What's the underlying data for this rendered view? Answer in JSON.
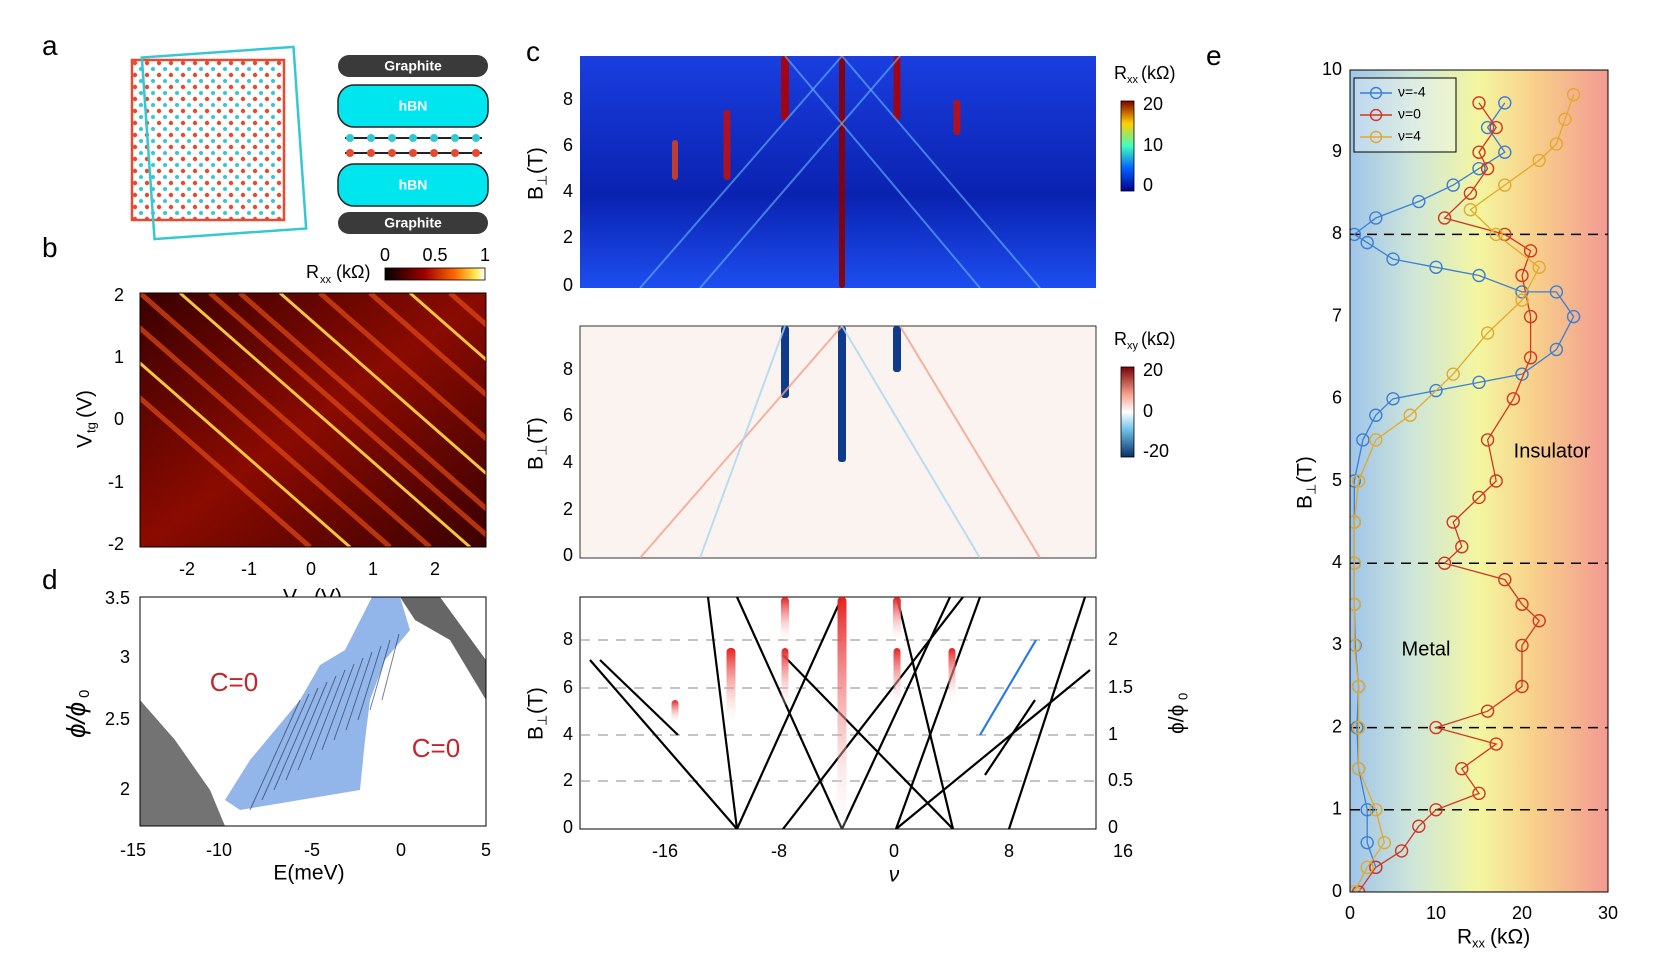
{
  "panel_labels": [
    "a",
    "b",
    "c",
    "d",
    "e"
  ],
  "panel_a": {
    "stack": [
      "Graphite",
      "hBN",
      "hBN",
      "Graphite"
    ]
  },
  "panel_b": {
    "xlabel": "V",
    "xlabel_sub": "bg",
    "xlabel_unit": "(V)",
    "ylabel": "V",
    "ylabel_sub": "tg",
    "ylabel_unit": "(V)",
    "xticks": [
      "-2",
      "-1",
      "0",
      "1",
      "2"
    ],
    "yticks": [
      "2",
      "1",
      "0",
      "-1",
      "-2"
    ],
    "colorbar_label": "R",
    "colorbar_sub": "xx",
    "colorbar_unit": "(kΩ)",
    "colorbar_ticks": [
      "0",
      "0.5",
      "1"
    ]
  },
  "panel_c": {
    "top": {
      "ylabel": "B",
      "ylabel_sub": "⊥",
      "ylabel_unit": "(T)",
      "yticks": [
        "8",
        "6",
        "4",
        "2",
        "0"
      ],
      "colorbar_label": "R",
      "colorbar_sub": "xx",
      "colorbar_unit": "(kΩ)",
      "colorbar_ticks": [
        "20",
        "10",
        "0"
      ]
    },
    "mid": {
      "ylabel": "B",
      "ylabel_sub": "⊥",
      "ylabel_unit": "(T)",
      "yticks": [
        "8",
        "6",
        "4",
        "2",
        "0"
      ],
      "colorbar_label": "R",
      "colorbar_sub": "xy",
      "colorbar_unit": "(kΩ)",
      "colorbar_ticks": [
        "20",
        "0",
        "-20"
      ]
    },
    "bottom": {
      "ylabel": "B",
      "ylabel_sub": "⊥",
      "ylabel_unit": "(T)",
      "yticks": [
        "8",
        "6",
        "4",
        "2",
        "0"
      ],
      "right_ylabel": "ϕ/ϕ",
      "right_ylabel_sub": "0",
      "right_yticks": [
        "2",
        "1.5",
        "1",
        "0.5",
        "0"
      ],
      "xticks": [
        "-16",
        "-8",
        "0",
        "8",
        "16"
      ],
      "xlabel": "ν"
    }
  },
  "panel_d": {
    "xlabel": "E(meV)",
    "ylabel": "ϕ/ϕ",
    "ylabel_sub": "0",
    "xticks": [
      "-15",
      "-10",
      "-5",
      "0",
      "5"
    ],
    "yticks": [
      "3.5",
      "3",
      "2.5",
      "2"
    ],
    "annotations": [
      "C=0",
      "C=0"
    ]
  },
  "chart_data": {
    "type": "line",
    "title": "",
    "xlabel": "R",
    "xlabel_sub": "xx",
    "xlabel_unit": "(kΩ)",
    "ylabel": "B",
    "ylabel_sub": "⊥",
    "ylabel_unit": "(T)",
    "xlim": [
      0,
      30
    ],
    "ylim": [
      0,
      10
    ],
    "xticks": [
      "0",
      "10",
      "20",
      "30"
    ],
    "yticks": [
      "10",
      "9",
      "8",
      "7",
      "6",
      "5",
      "4",
      "3",
      "2",
      "1",
      "0"
    ],
    "legend_position": "top-left",
    "region_labels": [
      "Insulator",
      "Metal"
    ],
    "dashed_levels": [
      8,
      4,
      2,
      1
    ],
    "series": [
      {
        "name": "ν=-4",
        "color": "#3b7fd4",
        "points": [
          [
            3,
            0.3
          ],
          [
            2,
            0.6
          ],
          [
            2,
            1.0
          ],
          [
            1,
            1.5
          ],
          [
            0.8,
            2.0
          ],
          [
            1,
            2.5
          ],
          [
            0.6,
            3.0
          ],
          [
            0.5,
            3.5
          ],
          [
            0.5,
            4.0
          ],
          [
            0.5,
            4.5
          ],
          [
            0.5,
            5.0
          ],
          [
            1.5,
            5.5
          ],
          [
            3,
            5.8
          ],
          [
            5,
            6.0
          ],
          [
            10,
            6.1
          ],
          [
            15,
            6.2
          ],
          [
            20,
            6.3
          ],
          [
            24,
            6.6
          ],
          [
            26,
            7.0
          ],
          [
            24,
            7.3
          ],
          [
            20,
            7.3
          ],
          [
            15,
            7.5
          ],
          [
            10,
            7.6
          ],
          [
            5,
            7.7
          ],
          [
            2,
            7.9
          ],
          [
            0.5,
            8.0
          ],
          [
            3,
            8.2
          ],
          [
            8,
            8.4
          ],
          [
            12,
            8.6
          ],
          [
            15,
            8.8
          ],
          [
            18,
            9.0
          ],
          [
            16,
            9.3
          ],
          [
            18,
            9.6
          ]
        ]
      },
      {
        "name": "ν=0",
        "color": "#d2371f",
        "points": [
          [
            1,
            0.0
          ],
          [
            3,
            0.3
          ],
          [
            6,
            0.5
          ],
          [
            8,
            0.8
          ],
          [
            10,
            1.0
          ],
          [
            15,
            1.2
          ],
          [
            13,
            1.5
          ],
          [
            17,
            1.8
          ],
          [
            10,
            2.0
          ],
          [
            16,
            2.2
          ],
          [
            20,
            2.5
          ],
          [
            20,
            3.0
          ],
          [
            22,
            3.3
          ],
          [
            20,
            3.5
          ],
          [
            18,
            3.8
          ],
          [
            11,
            4.0
          ],
          [
            13,
            4.2
          ],
          [
            12,
            4.5
          ],
          [
            15,
            4.8
          ],
          [
            17,
            5.0
          ],
          [
            16,
            5.5
          ],
          [
            19,
            6.0
          ],
          [
            21,
            6.5
          ],
          [
            21,
            7.0
          ],
          [
            20,
            7.5
          ],
          [
            21,
            7.8
          ],
          [
            18,
            8.0
          ],
          [
            11,
            8.2
          ],
          [
            14,
            8.5
          ],
          [
            16,
            8.8
          ],
          [
            15,
            9.0
          ],
          [
            17,
            9.3
          ],
          [
            15,
            9.6
          ]
        ]
      },
      {
        "name": "ν=4",
        "color": "#e3a92d",
        "points": [
          [
            0.5,
            0.0
          ],
          [
            2,
            0.3
          ],
          [
            4,
            0.6
          ],
          [
            3,
            1.0
          ],
          [
            1,
            1.5
          ],
          [
            1,
            2.0
          ],
          [
            1,
            2.5
          ],
          [
            0.5,
            3.0
          ],
          [
            0.5,
            3.5
          ],
          [
            0.5,
            4.0
          ],
          [
            0.5,
            4.5
          ],
          [
            1,
            5.0
          ],
          [
            3,
            5.5
          ],
          [
            7,
            5.8
          ],
          [
            12,
            6.3
          ],
          [
            16,
            6.8
          ],
          [
            20,
            7.2
          ],
          [
            22,
            7.6
          ],
          [
            17,
            8.0
          ],
          [
            14,
            8.3
          ],
          [
            18,
            8.6
          ],
          [
            22,
            8.9
          ],
          [
            24,
            9.1
          ],
          [
            25,
            9.4
          ],
          [
            26,
            9.7
          ]
        ]
      }
    ]
  }
}
